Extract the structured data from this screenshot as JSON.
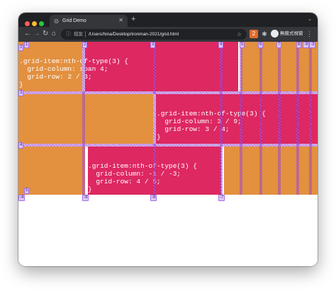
{
  "browser": {
    "tab_title": "Grid Demo",
    "tab_icon": "globe-icon",
    "new_tab_label": "+",
    "tab_menu_label": "⌄",
    "omnibox": {
      "security_label": "檔案",
      "url": "/Users/hina/Desktop/ironman-2021/grid.html"
    },
    "profile_label": "無痕式視窗",
    "extension_badge": "2"
  },
  "colors": {
    "pink": "#dd2862",
    "orange": "#e3903f",
    "grid_overlay": "#b55cec"
  },
  "page": {
    "items": [
      {
        "code": ".grid-item:nth-of-type(3) {\n  grid-column: span 4;\n  grid-row: 2 / 3;\n}"
      },
      {
        "code": ".grid-item:nth-of-type(3) {\n  grid-column: 3 / 9;\n  grid-row: 3 / 4;\n}"
      },
      {
        "code": ".grid-item:nth-of-type(3) {\n  grid-column: -1 / -3;\n  grid-row: 4 / 5;\n}"
      }
    ],
    "grid_lines": {
      "top_columns": [
        "1",
        "2",
        "3",
        "4",
        "5",
        "6",
        "7",
        "8",
        "-9",
        "-3"
      ],
      "row_left": [
        "2",
        "3",
        "4",
        "5",
        "-4"
      ],
      "bottom_columns": [
        "-9",
        "-8",
        "-7"
      ]
    }
  }
}
